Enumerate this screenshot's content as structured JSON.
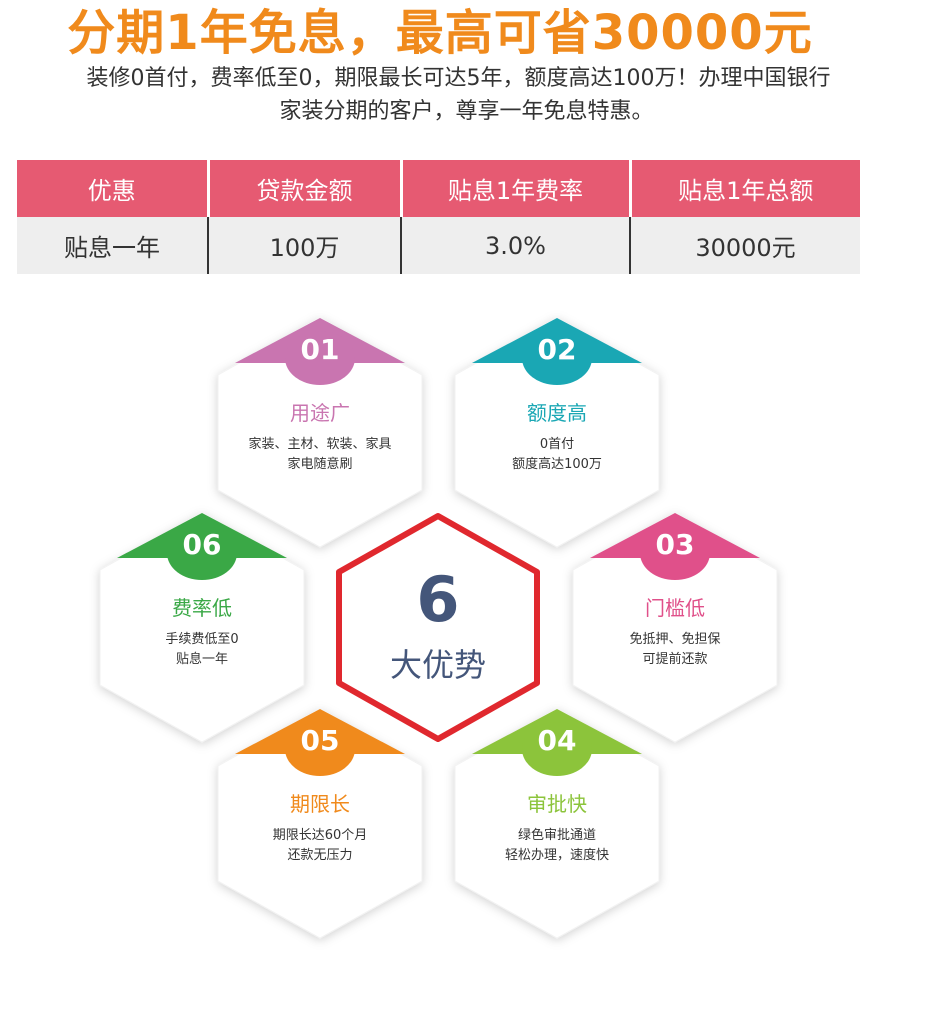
{
  "headline": "分期1年免息，最高可省30000元",
  "intro": {
    "line1": "装修0首付，费率低至0，期限最长可达5年，额度高达100万！办理中国银行",
    "line2": "家装分期的客户，尊享一年免息特惠。"
  },
  "table": {
    "headers": [
      "优惠",
      "贷款金额",
      "贴息1年费率",
      "贴息1年总额"
    ],
    "row": [
      "贴息一年",
      "100万",
      "3.0%",
      "30000元"
    ]
  },
  "center": {
    "number": "6",
    "label": "大优势"
  },
  "features": [
    {
      "num": "01",
      "title": "用途广",
      "desc": [
        "家装、主材、软装、家具",
        "家电随意刷"
      ],
      "color": "#c975b0"
    },
    {
      "num": "02",
      "title": "额度高",
      "desc": [
        "0首付",
        "额度高达100万"
      ],
      "color": "#1aa7b4"
    },
    {
      "num": "03",
      "title": "门槛低",
      "desc": [
        "免抵押、免担保",
        "可提前还款"
      ],
      "color": "#e0508a"
    },
    {
      "num": "04",
      "title": "审批快",
      "desc": [
        "绿色审批通道",
        "轻松办理，速度快"
      ],
      "color": "#8cc43b"
    },
    {
      "num": "05",
      "title": "期限长",
      "desc": [
        "期限长达60个月",
        "还款无压力"
      ],
      "color": "#f08a1c"
    },
    {
      "num": "06",
      "title": "费率低",
      "desc": [
        "手续费低至0",
        "贴息一年"
      ],
      "color": "#3aa846"
    }
  ],
  "colors": {
    "headline": "#f08a1c",
    "table_header": "#e65a72",
    "center_border": "#e0282e",
    "center_text": "#44567a"
  }
}
